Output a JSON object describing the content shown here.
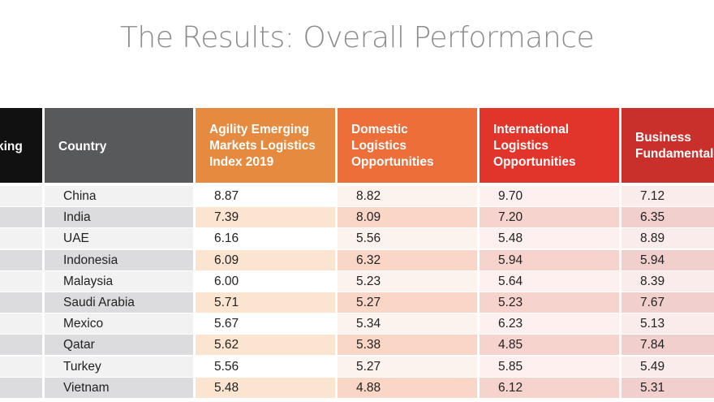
{
  "title": "The Results: Overall Performance",
  "table": {
    "headers": {
      "ranking": "king",
      "country": "Country",
      "agility": [
        "Agility Emerging",
        "Markets Logistics",
        "Index 2019"
      ],
      "domestic": [
        "Domestic",
        "Logistics",
        "Opportunities"
      ],
      "international": [
        "International",
        "Logistics",
        "Opportunities"
      ],
      "business": [
        "Business",
        "Fundamentals"
      ]
    },
    "rows": [
      {
        "country": "China",
        "agility": "8.87",
        "domestic": "8.82",
        "international": "9.70",
        "business": "7.12"
      },
      {
        "country": "India",
        "agility": "7.39",
        "domestic": "8.09",
        "international": "7.20",
        "business": "6.35"
      },
      {
        "country": "UAE",
        "agility": "6.16",
        "domestic": "5.56",
        "international": "5.48",
        "business": "8.89"
      },
      {
        "country": "Indonesia",
        "agility": "6.09",
        "domestic": "6.32",
        "international": "5.94",
        "business": "5.94"
      },
      {
        "country": "Malaysia",
        "agility": "6.00",
        "domestic": "5.23",
        "international": "5.64",
        "business": "8.39"
      },
      {
        "country": "Saudi Arabia",
        "agility": "5.71",
        "domestic": "5.27",
        "international": "5.23",
        "business": "7.67"
      },
      {
        "country": "Mexico",
        "agility": "5.67",
        "domestic": "5.34",
        "international": "6.23",
        "business": "5.13"
      },
      {
        "country": "Qatar",
        "agility": "5.62",
        "domestic": "5.38",
        "international": "4.85",
        "business": "7.84"
      },
      {
        "country": "Turkey",
        "agility": "5.56",
        "domestic": "5.27",
        "international": "5.85",
        "business": "5.49"
      },
      {
        "country": "Vietnam",
        "agility": "5.48",
        "domestic": "4.88",
        "international": "6.12",
        "business": "5.31"
      }
    ]
  },
  "colors": {
    "ranking_header": "#111111",
    "country_header": "#58595b",
    "agility_header": "#e58a3f",
    "domestic_header": "#ec6e39",
    "international_header": "#e1352c",
    "business_header": "#c9302b"
  }
}
